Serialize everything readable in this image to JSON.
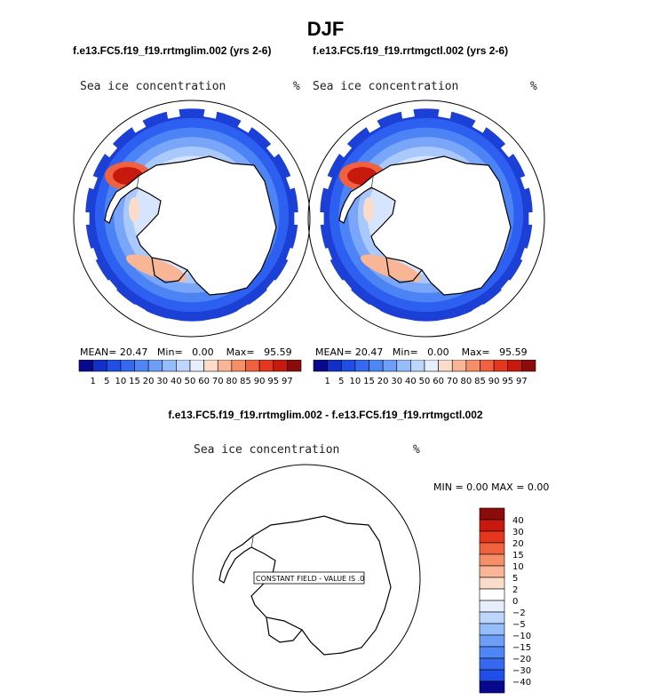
{
  "title": "DJF",
  "panels": [
    {
      "case_title": "f.e13.FC5.f19_f19.rrtmglim.002 (yrs 2-6)",
      "variable": "Sea ice concentration",
      "units": "%",
      "mean_label": "MEAN=",
      "mean": "20.47",
      "min_label": "Min=",
      "min": "0.00",
      "max_label": "Max=",
      "max": "95.59"
    },
    {
      "case_title": "f.e13.FC5.f19_f19.rrtmgctl.002 (yrs 2-6)",
      "variable": "Sea ice concentration",
      "units": "%",
      "mean_label": "MEAN=",
      "mean": "20.47",
      "min_label": "Min=",
      "min": "0.00",
      "max_label": "Max=",
      "max": "95.59"
    }
  ],
  "difference": {
    "title": "f.e13.FC5.f19_f19.rrtmglim.002 - f.e13.FC5.f19_f19.rrtmgctl.002",
    "variable": "Sea ice concentration",
    "units": "%",
    "stat_text": "MIN =    0.00 MAX =    0.00",
    "constant_field_label": "CONSTANT FIELD - VALUE IS .0"
  },
  "chart_data": [
    {
      "type": "heatmap",
      "projection": "south-polar-stereographic",
      "colorbar": {
        "orientation": "horizontal",
        "levels": [
          "1",
          "5",
          "10",
          "15",
          "20",
          "30",
          "40",
          "50",
          "60",
          "70",
          "80",
          "85",
          "90",
          "95",
          "97"
        ],
        "colors": [
          "#08088f",
          "#1230c8",
          "#1f4fe6",
          "#3469f0",
          "#4f86f5",
          "#6e9ff8",
          "#95bdfb",
          "#bcd6fd",
          "#e6eefb",
          "#fbdccb",
          "#f8b696",
          "#f58f68",
          "#f0623f",
          "#e5371e",
          "#c8190f",
          "#8c0b0b"
        ]
      }
    },
    {
      "type": "heatmap",
      "projection": "south-polar-stereographic",
      "colorbar": {
        "orientation": "vertical",
        "levels": [
          "40",
          "30",
          "20",
          "15",
          "10",
          "5",
          "2",
          "0",
          "−2",
          "−5",
          "−10",
          "−15",
          "−20",
          "−30",
          "−40"
        ],
        "colors": [
          "#8c0b0b",
          "#c8190f",
          "#e5371e",
          "#f0623f",
          "#f58f68",
          "#f8b696",
          "#fbdccb",
          "#ffffff",
          "#e6eefb",
          "#bcd6fd",
          "#95bdfb",
          "#6e9ff8",
          "#4f86f5",
          "#3469f0",
          "#1f4fe6",
          "#08088f"
        ]
      }
    }
  ]
}
